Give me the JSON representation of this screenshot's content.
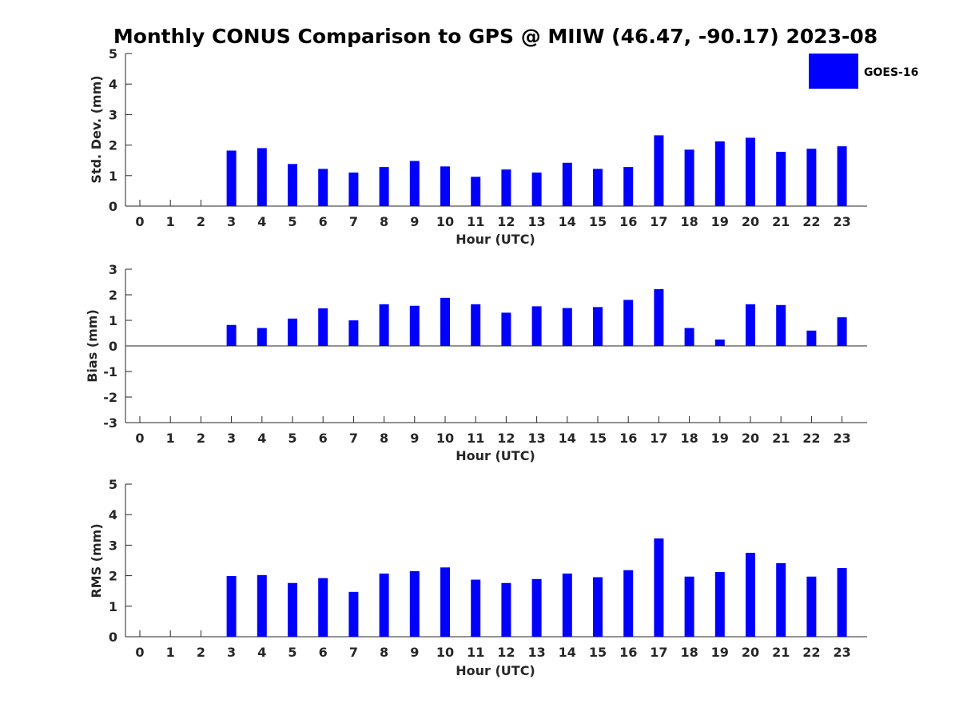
{
  "chart_data": {
    "type": "bar",
    "title": "Monthly CONUS Comparison to GPS @ MIIW (46.47, -90.17) 2023-08",
    "legend": {
      "placement": "top-right",
      "entries": [
        "GOES-16"
      ]
    },
    "series_color": "#0000ff",
    "categories": [
      "0",
      "1",
      "2",
      "3",
      "4",
      "5",
      "6",
      "7",
      "8",
      "9",
      "10",
      "11",
      "12",
      "13",
      "14",
      "15",
      "16",
      "17",
      "18",
      "19",
      "20",
      "21",
      "22",
      "23"
    ],
    "panels": [
      {
        "id": "std",
        "type": "bar",
        "ylabel": "Std. Dev. (mm)",
        "xlabel": "Hour (UTC)",
        "ylim": [
          0,
          5
        ],
        "yticks": [
          "0",
          "1",
          "2",
          "3",
          "4",
          "5"
        ],
        "series": [
          {
            "name": "GOES-16",
            "values": [
              null,
              null,
              null,
              1.82,
              1.9,
              1.38,
              1.22,
              1.1,
              1.28,
              1.48,
              1.3,
              0.96,
              1.2,
              1.1,
              1.42,
              1.22,
              1.28,
              2.32,
              1.85,
              2.12,
              2.24,
              1.78,
              1.88,
              1.96
            ]
          }
        ]
      },
      {
        "id": "bias",
        "type": "bar",
        "ylabel": "Bias (mm)",
        "xlabel": "Hour (UTC)",
        "ylim": [
          -3,
          3
        ],
        "yticks": [
          "-3",
          "-2",
          "-1",
          "0",
          "1",
          "2",
          "3"
        ],
        "series": [
          {
            "name": "GOES-16",
            "values": [
              null,
              null,
              null,
              0.82,
              0.7,
              1.07,
              1.47,
              1.0,
              1.63,
              1.57,
              1.88,
              1.63,
              1.3,
              1.55,
              1.48,
              1.52,
              1.8,
              2.22,
              0.7,
              0.25,
              1.63,
              1.6,
              0.6,
              1.12
            ]
          }
        ]
      },
      {
        "id": "rms",
        "type": "bar",
        "ylabel": "RMS (mm)",
        "xlabel": "Hour (UTC)",
        "ylim": [
          0,
          5
        ],
        "yticks": [
          "0",
          "1",
          "2",
          "3",
          "4",
          "5"
        ],
        "series": [
          {
            "name": "GOES-16",
            "values": [
              null,
              null,
              null,
              1.99,
              2.02,
              1.76,
              1.92,
              1.47,
              2.07,
              2.15,
              2.27,
              1.87,
              1.76,
              1.89,
              2.07,
              1.95,
              2.18,
              3.22,
              1.97,
              2.12,
              2.75,
              2.41,
              1.97,
              2.25
            ]
          }
        ]
      }
    ]
  }
}
